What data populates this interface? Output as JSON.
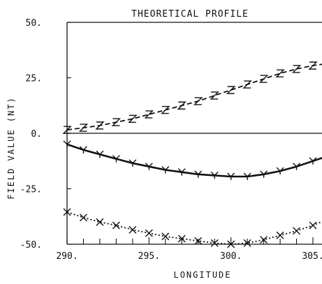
{
  "chart_data": {
    "type": "line",
    "title": "THEORETICAL PROFILE",
    "xlabel": "LONGITUDE",
    "ylabel": "FIELD VALUE (NT)",
    "xlim": [
      290,
      306
    ],
    "ylim": [
      -50,
      50
    ],
    "x_ticks": [
      290,
      295,
      300,
      305
    ],
    "x_tick_labels": [
      "290.",
      "295.",
      "300.",
      "305."
    ],
    "y_ticks": [
      50,
      25,
      0,
      -25,
      -50
    ],
    "y_tick_labels": [
      "50.",
      "25.",
      "0.",
      "-25.",
      "-50."
    ],
    "zero_line": true,
    "grid": false,
    "series": [
      {
        "marker": "Z",
        "line_style": "dashed",
        "x": [
          290,
          291,
          292,
          293,
          294,
          295,
          296,
          297,
          298,
          299,
          300,
          301,
          302,
          303,
          304,
          305,
          306
        ],
        "values": [
          1.5,
          2.5,
          3.5,
          5,
          6.5,
          8.5,
          10.5,
          12.5,
          14.5,
          17,
          19.5,
          22,
          24.5,
          27,
          29,
          30.5,
          31.5
        ]
      },
      {
        "marker": "Y",
        "line_style": "solid",
        "x": [
          290,
          291,
          292,
          293,
          294,
          295,
          296,
          297,
          298,
          299,
          300,
          301,
          302,
          303,
          304,
          305,
          306
        ],
        "values": [
          -5,
          -7.5,
          -9.5,
          -11.5,
          -13.5,
          -15,
          -16.5,
          -17.5,
          -18.5,
          -19,
          -19.5,
          -19.5,
          -18.5,
          -17,
          -15,
          -12.5,
          -10
        ]
      },
      {
        "marker": "X",
        "line_style": "dotted",
        "x": [
          290,
          291,
          292,
          293,
          294,
          295,
          296,
          297,
          298,
          299,
          300,
          301,
          302,
          303,
          304,
          305,
          306
        ],
        "values": [
          -35.5,
          -38,
          -40,
          -41.5,
          -43.5,
          -45,
          -46.5,
          -47.5,
          -48.5,
          -49.5,
          -50,
          -49.5,
          -48,
          -46,
          -44,
          -41.5,
          -38.5
        ]
      }
    ]
  }
}
